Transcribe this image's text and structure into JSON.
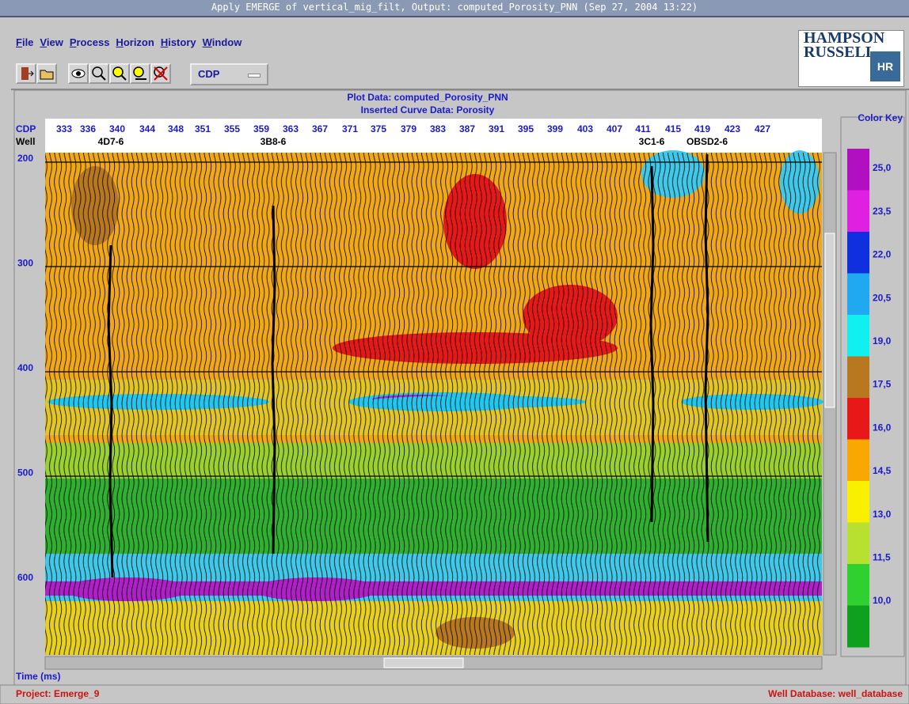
{
  "window": {
    "title": "Apply EMERGE of vertical_mig_filt, Output: computed_Porosity_PNN  (Sep 27, 2004  13:22)"
  },
  "menu": [
    "File",
    "View",
    "Process",
    "Horizon",
    "History",
    "Window"
  ],
  "toolbar": {
    "dropdown": "CDP"
  },
  "logo": {
    "line1": "HAMPSON",
    "line2": "RUSSELL",
    "mark": "HR"
  },
  "plot": {
    "title": "Plot Data: computed_Porosity_PNN",
    "subtitle": "Inserted Curve Data: Porosity",
    "cdp_label": "CDP",
    "well_label": "Well",
    "cdps": [
      "333",
      "336",
      "340",
      "344",
      "348",
      "351",
      "355",
      "359",
      "363",
      "367",
      "371",
      "375",
      "379",
      "383",
      "387",
      "391",
      "395",
      "399",
      "403",
      "407",
      "411",
      "415",
      "419",
      "423",
      "427"
    ],
    "wells": [
      "4D7-6",
      "3B8-6",
      "3C1-6",
      "OBSD2-6"
    ],
    "time_ticks": [
      "200",
      "300",
      "400",
      "500",
      "600"
    ],
    "time_label": "Time (ms)"
  },
  "color_key": {
    "title": "Color Key",
    "labels": [
      "25,0",
      "23,5",
      "22,0",
      "20,5",
      "19,0",
      "17,5",
      "16,0",
      "14,5",
      "13,0",
      "11,5",
      "10,0"
    ]
  },
  "status": {
    "left": "Project: Emerge_9",
    "right": "Well Database: well_database"
  }
}
